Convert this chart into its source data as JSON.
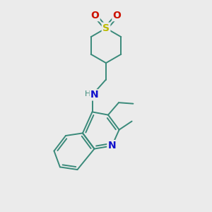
{
  "bg_color": "#ebebeb",
  "bond_color": "#3a8a7a",
  "bond_width": 1.4,
  "N_color": "#1010cc",
  "S_color": "#bbbb00",
  "O_color": "#cc1100",
  "figsize": [
    3.0,
    3.0
  ],
  "dpi": 100,
  "xlim": [
    0,
    10
  ],
  "ylim": [
    0,
    10
  ]
}
